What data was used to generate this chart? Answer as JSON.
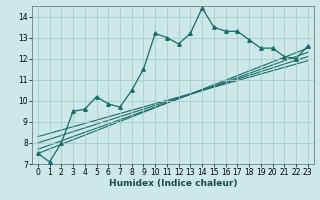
{
  "title": "",
  "xlabel": "Humidex (Indice chaleur)",
  "ylabel": "",
  "bg_color": "#cce8e8",
  "grid_color": "#aacccc",
  "line_color": "#1a6b6b",
  "ylim": [
    7,
    14.5
  ],
  "xlim": [
    -0.5,
    23.5
  ],
  "yticks": [
    7,
    8,
    9,
    10,
    11,
    12,
    13,
    14
  ],
  "xticks": [
    0,
    1,
    2,
    3,
    4,
    5,
    6,
    7,
    8,
    9,
    10,
    11,
    12,
    13,
    14,
    15,
    16,
    17,
    18,
    19,
    20,
    21,
    22,
    23
  ],
  "humidex_x": [
    0,
    1,
    2,
    3,
    4,
    5,
    6,
    7,
    8,
    9,
    10,
    11,
    12,
    13,
    14,
    15,
    16,
    17,
    18,
    19,
    20,
    21,
    22,
    23
  ],
  "humidex_y": [
    7.5,
    7.1,
    8.0,
    9.5,
    9.6,
    10.2,
    9.85,
    9.7,
    10.5,
    11.5,
    13.2,
    13.0,
    12.7,
    13.2,
    14.4,
    13.5,
    13.3,
    13.3,
    12.9,
    12.5,
    12.5,
    12.1,
    12.0,
    12.6
  ],
  "reg_lines": [
    {
      "x0": 0,
      "y0": 7.5,
      "x1": 23,
      "y1": 12.5
    },
    {
      "x0": 0,
      "y0": 7.7,
      "x1": 23,
      "y1": 12.3
    },
    {
      "x0": 0,
      "y0": 8.0,
      "x1": 23,
      "y1": 12.1
    },
    {
      "x0": 0,
      "y0": 8.3,
      "x1": 23,
      "y1": 11.9
    }
  ]
}
